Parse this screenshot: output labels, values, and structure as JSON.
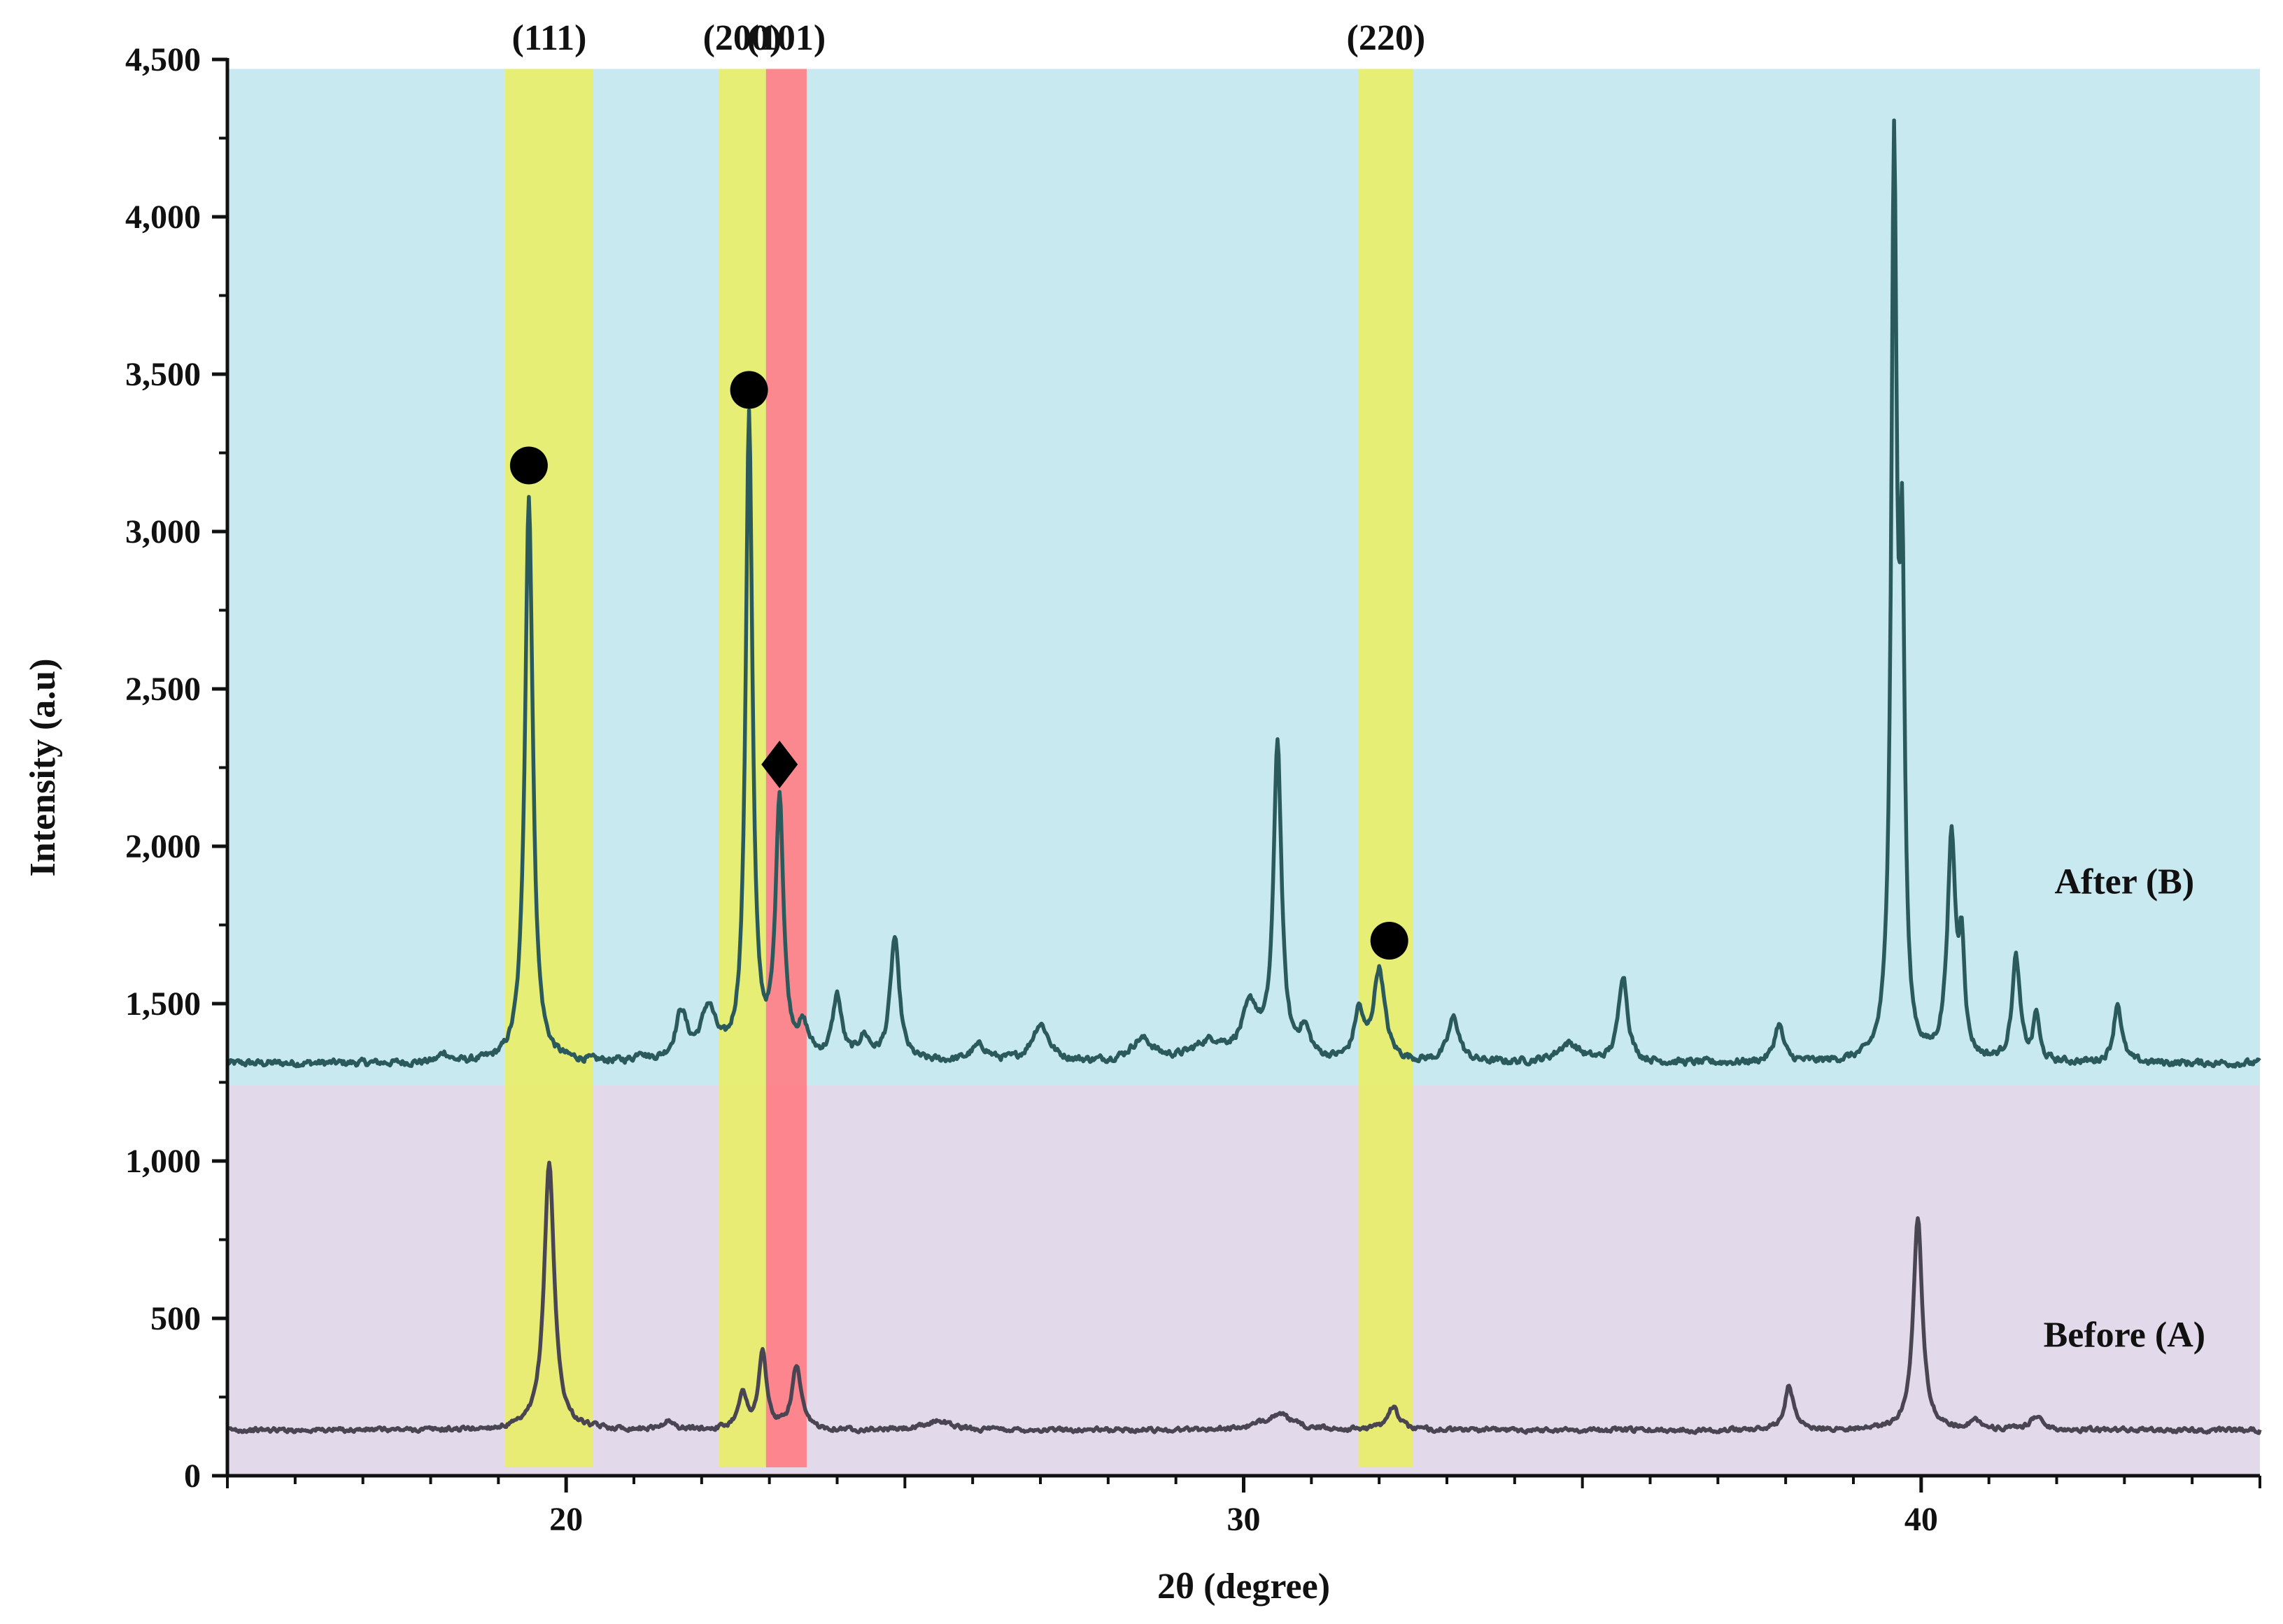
{
  "chart_data": {
    "type": "line",
    "title": "",
    "xlabel": "2θ (degree)",
    "ylabel": "Intensity (a.u)",
    "xlim": [
      15,
      45
    ],
    "ylim": [
      0,
      4500
    ],
    "x_ticks": [
      20,
      30,
      40
    ],
    "x_tick_labels": [
      "20",
      "30",
      "40"
    ],
    "y_ticks": [
      0,
      500,
      1000,
      1500,
      2000,
      2500,
      3000,
      3500,
      4000,
      4500
    ],
    "y_tick_labels": [
      "0",
      "500",
      "1,000",
      "1,500",
      "2,000",
      "2,500",
      "3,000",
      "3,500",
      "4,000",
      "4,500"
    ],
    "grid": false,
    "background_regions": [
      {
        "y_range": [
          1240,
          4470
        ],
        "color": "#c9e9f1"
      },
      {
        "y_range": [
          0,
          1240
        ],
        "color": "#e2d9ea"
      }
    ],
    "highlight_bands": [
      {
        "label": "(111)",
        "x_range": [
          19.1,
          20.4
        ],
        "color": "#e8ee6a"
      },
      {
        "label": "(200)",
        "x_range": [
          22.25,
          22.95
        ],
        "color": "#e8ee6a"
      },
      {
        "label": "(101)",
        "x_range": [
          22.95,
          23.55
        ],
        "color": "#ff7f86"
      },
      {
        "label": "(220)",
        "x_range": [
          31.7,
          32.5
        ],
        "color": "#e8ee6a"
      }
    ],
    "markers": [
      {
        "type": "circle",
        "x": 19.45,
        "y": 3210
      },
      {
        "type": "circle",
        "x": 22.7,
        "y": 3450
      },
      {
        "type": "diamond",
        "x": 23.15,
        "y": 2260
      },
      {
        "type": "circle",
        "x": 32.15,
        "y": 1700
      }
    ],
    "series": [
      {
        "name": "After (B)",
        "color": "#2a5a5c",
        "baseline": 1310,
        "noise": 18,
        "label_at": [
          43.0,
          1850
        ],
        "peaks": [
          [
            18.2,
            30,
            0.08
          ],
          [
            19.45,
            1800,
            0.07
          ],
          [
            21.1,
            30,
            0.06
          ],
          [
            21.7,
            150,
            0.1
          ],
          [
            22.1,
            160,
            0.13
          ],
          [
            22.7,
            2050,
            0.06
          ],
          [
            23.15,
            820,
            0.07
          ],
          [
            23.5,
            90,
            0.1
          ],
          [
            24.0,
            200,
            0.08
          ],
          [
            24.4,
            70,
            0.1
          ],
          [
            24.85,
            390,
            0.08
          ],
          [
            26.1,
            50,
            0.15
          ],
          [
            27.0,
            120,
            0.15
          ],
          [
            28.5,
            70,
            0.2
          ],
          [
            29.5,
            60,
            0.3
          ],
          [
            30.1,
            160,
            0.15
          ],
          [
            30.5,
            1000,
            0.07
          ],
          [
            30.9,
            90,
            0.1
          ],
          [
            31.7,
            150,
            0.08
          ],
          [
            32.0,
            290,
            0.1
          ],
          [
            33.1,
            140,
            0.1
          ],
          [
            34.8,
            60,
            0.2
          ],
          [
            35.6,
            280,
            0.08
          ],
          [
            37.9,
            120,
            0.08
          ],
          [
            39.6,
            2820,
            0.05
          ],
          [
            39.72,
            1400,
            0.045
          ],
          [
            40.4,
            60,
            0.08
          ],
          [
            40.45,
            650,
            0.07
          ],
          [
            40.6,
            330,
            0.05
          ],
          [
            41.4,
            330,
            0.07
          ],
          [
            41.7,
            150,
            0.05
          ],
          [
            42.9,
            190,
            0.07
          ]
        ]
      },
      {
        "name": "Before (A)",
        "color": "#4a4553",
        "baseline": 145,
        "noise": 12,
        "label_at": [
          43.0,
          410
        ],
        "peaks": [
          [
            19.75,
            850,
            0.09
          ],
          [
            21.5,
            25,
            0.1
          ],
          [
            22.6,
            110,
            0.08
          ],
          [
            22.9,
            240,
            0.07
          ],
          [
            23.4,
            200,
            0.08
          ],
          [
            25.5,
            30,
            0.2
          ],
          [
            30.5,
            50,
            0.25
          ],
          [
            32.2,
            75,
            0.1
          ],
          [
            38.05,
            140,
            0.08
          ],
          [
            39.95,
            680,
            0.08
          ],
          [
            40.8,
            30,
            0.1
          ],
          [
            41.7,
            45,
            0.1
          ]
        ]
      }
    ]
  }
}
